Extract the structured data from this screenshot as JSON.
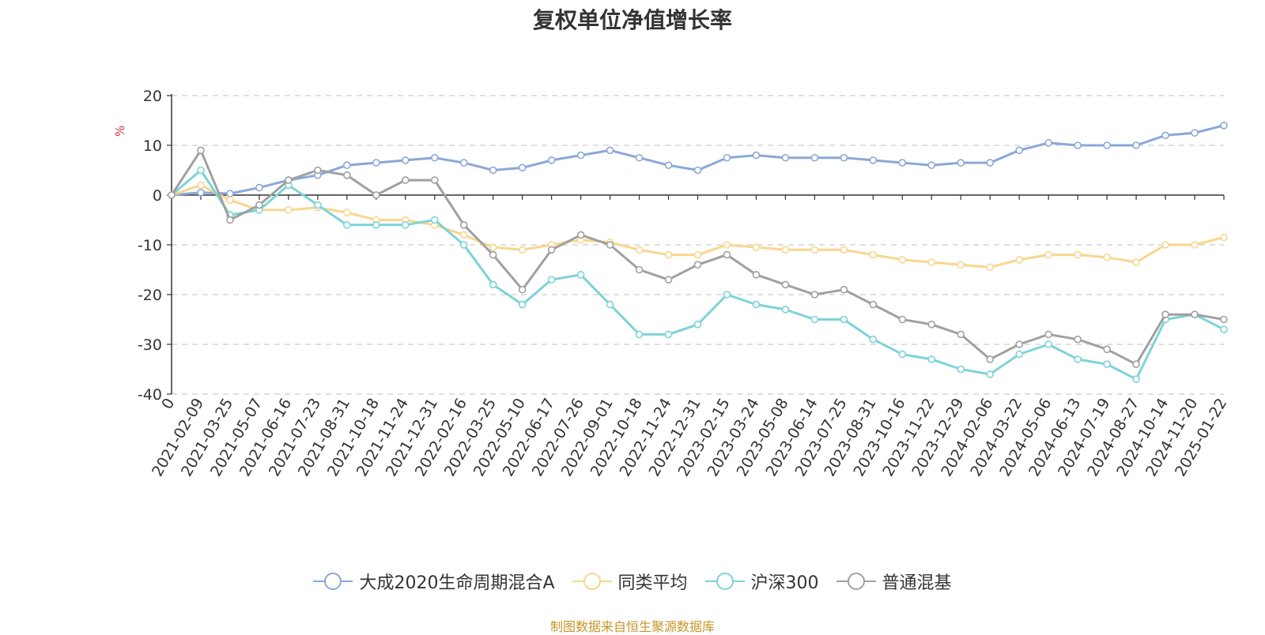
{
  "title": "复权单位净值增长率",
  "source_text": "制图数据来自恒生聚源数据库",
  "chart_data": {
    "type": "line",
    "title": "复权单位净值增长率",
    "ylabel": "%",
    "ylim": [
      -40,
      20
    ],
    "yticks": [
      20,
      10,
      0,
      -10,
      -20,
      -30,
      -40
    ],
    "grid": true,
    "legend_position": "bottom",
    "x_labels": [
      "0",
      "2021-02-09",
      "2021-03-25",
      "2021-05-07",
      "2021-06-16",
      "2021-07-23",
      "2021-08-31",
      "2021-10-18",
      "2021-11-24",
      "2021-12-31",
      "2022-02-16",
      "2022-03-25",
      "2022-05-10",
      "2022-06-17",
      "2022-07-26",
      "2022-09-01",
      "2022-10-18",
      "2022-11-24",
      "2022-12-31",
      "2023-02-15",
      "2023-03-24",
      "2023-05-08",
      "2023-06-14",
      "2023-07-25",
      "2023-08-31",
      "2023-10-16",
      "2023-11-22",
      "2023-12-29",
      "2024-02-06",
      "2024-03-22",
      "2024-05-06",
      "2024-06-13",
      "2024-07-19",
      "2024-08-27",
      "2024-10-14",
      "2024-11-20",
      "2025-01-22"
    ],
    "series": [
      {
        "name": "大成2020生命周期混合A",
        "color": "#8aa8d8",
        "values": [
          0,
          0.5,
          0.3,
          1.5,
          3,
          4,
          6,
          6.5,
          7,
          7.5,
          6.5,
          5,
          5.5,
          7,
          8,
          9,
          7.5,
          6,
          5,
          7.5,
          8,
          7.5,
          7.5,
          7.5,
          7,
          6.5,
          6,
          6.5,
          6.5,
          9,
          10.5,
          10,
          10,
          10,
          12,
          12.5,
          14
        ]
      },
      {
        "name": "同类平均",
        "color": "#f9d68e",
        "values": [
          0,
          2,
          -1,
          -3,
          -3,
          -2.5,
          -3.5,
          -5,
          -5,
          -6,
          -8,
          -10.5,
          -11,
          -10,
          -9,
          -9.5,
          -11,
          -12,
          -12,
          -10,
          -10.5,
          -11,
          -11,
          -11,
          -12,
          -13,
          -13.5,
          -14,
          -14.5,
          -13,
          -12,
          -12,
          -12.5,
          -13.5,
          -10,
          -10,
          -8.5
        ]
      },
      {
        "name": "沪深300",
        "color": "#7dd3d8",
        "values": [
          0,
          5,
          -4,
          -3,
          2,
          -2,
          -6,
          -6,
          -6,
          -5,
          -10,
          -18,
          -22,
          -17,
          -16,
          -22,
          -28,
          -28,
          -26,
          -20,
          -22,
          -23,
          -25,
          -25,
          -29,
          -32,
          -33,
          -35,
          -36,
          -32,
          -30,
          -33,
          -34,
          -37,
          -25,
          -24,
          -27
        ]
      },
      {
        "name": "普通混基",
        "color": "#a0a0a0",
        "values": [
          0,
          9,
          -5,
          -2,
          3,
          5,
          4,
          0,
          3,
          3,
          -6,
          -12,
          -19,
          -11,
          -8,
          -10,
          -15,
          -17,
          -14,
          -12,
          -16,
          -18,
          -20,
          -19,
          -22,
          -25,
          -26,
          -28,
          -33,
          -30,
          -28,
          -29,
          -31,
          -34,
          -24,
          -24,
          -25
        ]
      }
    ]
  }
}
